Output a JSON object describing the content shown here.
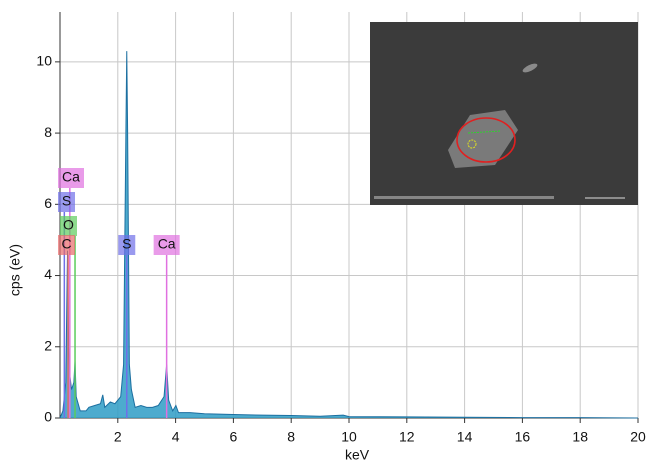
{
  "chart_data": {
    "type": "area",
    "x_label": "keV",
    "y_label": "cps (eV)",
    "xlim": [
      0,
      20
    ],
    "ylim": [
      0,
      11.4
    ],
    "xticks": [
      2,
      4,
      6,
      8,
      10,
      12,
      14,
      16,
      18,
      20
    ],
    "yticks": [
      0,
      2,
      4,
      6,
      8,
      10
    ],
    "grid": true,
    "color": "#2e9cc6",
    "x": [
      0,
      0.1,
      0.2,
      0.26,
      0.3,
      0.34,
      0.4,
      0.48,
      0.52,
      0.56,
      0.7,
      0.9,
      1.0,
      1.2,
      1.4,
      1.48,
      1.55,
      1.74,
      1.9,
      2.1,
      2.2,
      2.28,
      2.31,
      2.34,
      2.4,
      2.47,
      2.6,
      2.8,
      3.0,
      3.2,
      3.4,
      3.6,
      3.69,
      3.76,
      3.9,
      4.01,
      4.1,
      4.5,
      5,
      6,
      7,
      8,
      9,
      9.8,
      10,
      12,
      14,
      16,
      18,
      20
    ],
    "values": [
      0,
      0.2,
      1.0,
      4.7,
      2.0,
      1.2,
      0.8,
      1.0,
      1.6,
      0.6,
      0.2,
      0.2,
      0.3,
      0.35,
      0.4,
      0.65,
      0.3,
      0.45,
      0.4,
      0.6,
      1.5,
      8,
      10.3,
      8,
      1.5,
      0.8,
      0.3,
      0.35,
      0.3,
      0.3,
      0.35,
      0.6,
      1.5,
      0.5,
      0.2,
      0.35,
      0.15,
      0.15,
      0.12,
      0.1,
      0.08,
      0.07,
      0.05,
      0.08,
      0.04,
      0.03,
      0.02,
      0.01,
      0.01,
      0
    ],
    "markers": [
      {
        "label": "Ca",
        "energy": 0.34,
        "color": "#e070e0"
      },
      {
        "label": "S",
        "energy": 0.15,
        "color": "#6f6fe8"
      },
      {
        "label": "O",
        "energy": 0.52,
        "color": "#5ccc5c"
      },
      {
        "label": "C",
        "energy": 0.28,
        "color": "#e86a6a"
      },
      {
        "label": "S",
        "energy": 2.31,
        "color": "#6f6fe8"
      },
      {
        "label": "Ca",
        "energy": 3.69,
        "color": "#e070e0"
      }
    ]
  }
}
